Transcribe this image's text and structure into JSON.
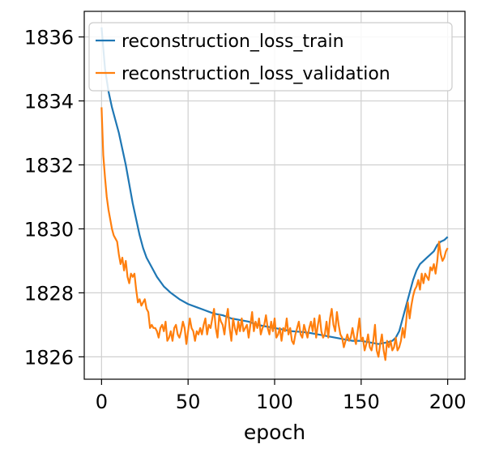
{
  "chart_data": {
    "type": "line",
    "xlabel": "epoch",
    "ylabel": "",
    "xlim": [
      -10,
      210
    ],
    "ylim": [
      1825.3,
      1836.8
    ],
    "xticks": [
      0,
      50,
      100,
      150,
      200
    ],
    "yticks": [
      1826,
      1828,
      1830,
      1832,
      1834,
      1836
    ],
    "grid": true,
    "legend_position": "top-right",
    "colors": {
      "train": "#1f77b4",
      "validation": "#ff7f0e"
    },
    "series": [
      {
        "name": "reconstruction_loss_train",
        "x": [
          0,
          2,
          4,
          6,
          8,
          10,
          12,
          14,
          16,
          18,
          20,
          22,
          24,
          26,
          28,
          30,
          32,
          34,
          36,
          38,
          40,
          45,
          50,
          55,
          60,
          65,
          70,
          75,
          80,
          85,
          90,
          95,
          100,
          105,
          110,
          115,
          120,
          125,
          130,
          135,
          140,
          145,
          150,
          155,
          160,
          165,
          168,
          170,
          172,
          174,
          176,
          178,
          180,
          182,
          184,
          186,
          188,
          190,
          192,
          194,
          196,
          198,
          200
        ],
        "y": [
          1836.3,
          1835.0,
          1834.3,
          1833.8,
          1833.4,
          1833.0,
          1832.5,
          1832.0,
          1831.4,
          1830.8,
          1830.3,
          1829.8,
          1829.4,
          1829.1,
          1828.9,
          1828.7,
          1828.5,
          1828.35,
          1828.2,
          1828.1,
          1828.0,
          1827.8,
          1827.65,
          1827.55,
          1827.45,
          1827.35,
          1827.3,
          1827.2,
          1827.15,
          1827.1,
          1827.0,
          1826.95,
          1826.9,
          1826.85,
          1826.8,
          1826.78,
          1826.75,
          1826.7,
          1826.65,
          1826.6,
          1826.55,
          1826.5,
          1826.5,
          1826.45,
          1826.4,
          1826.45,
          1826.5,
          1826.6,
          1826.8,
          1827.2,
          1827.6,
          1828.0,
          1828.4,
          1828.7,
          1828.9,
          1829.0,
          1829.1,
          1829.2,
          1829.3,
          1829.5,
          1829.6,
          1829.65,
          1829.75
        ]
      },
      {
        "name": "reconstruction_loss_validation",
        "x": [
          0,
          1,
          2,
          3,
          4,
          5,
          6,
          7,
          8,
          9,
          10,
          11,
          12,
          13,
          14,
          15,
          16,
          17,
          18,
          19,
          20,
          21,
          22,
          23,
          24,
          25,
          26,
          27,
          28,
          29,
          30,
          31,
          32,
          33,
          34,
          35,
          36,
          37,
          38,
          39,
          40,
          41,
          42,
          43,
          44,
          45,
          46,
          47,
          48,
          49,
          50,
          51,
          52,
          53,
          54,
          55,
          56,
          57,
          58,
          59,
          60,
          61,
          62,
          63,
          64,
          65,
          66,
          67,
          68,
          69,
          70,
          71,
          72,
          73,
          74,
          75,
          76,
          77,
          78,
          79,
          80,
          81,
          82,
          83,
          84,
          85,
          86,
          87,
          88,
          89,
          90,
          91,
          92,
          93,
          94,
          95,
          96,
          97,
          98,
          99,
          100,
          101,
          102,
          103,
          104,
          105,
          106,
          107,
          108,
          109,
          110,
          111,
          112,
          113,
          114,
          115,
          116,
          117,
          118,
          119,
          120,
          121,
          122,
          123,
          124,
          125,
          126,
          127,
          128,
          129,
          130,
          131,
          132,
          133,
          134,
          135,
          136,
          137,
          138,
          139,
          140,
          141,
          142,
          143,
          144,
          145,
          146,
          147,
          148,
          149,
          150,
          151,
          152,
          153,
          154,
          155,
          156,
          157,
          158,
          159,
          160,
          161,
          162,
          163,
          164,
          165,
          166,
          167,
          168,
          169,
          170,
          171,
          172,
          173,
          174,
          175,
          176,
          177,
          178,
          179,
          180,
          181,
          182,
          183,
          184,
          185,
          186,
          187,
          188,
          189,
          190,
          191,
          192,
          193,
          194,
          195,
          196,
          197,
          198,
          199,
          200
        ],
        "y": [
          1833.8,
          1832.3,
          1831.6,
          1831.0,
          1830.6,
          1830.3,
          1830.0,
          1829.8,
          1829.7,
          1829.6,
          1829.2,
          1828.9,
          1829.1,
          1828.7,
          1829.0,
          1828.5,
          1828.3,
          1828.6,
          1828.5,
          1828.6,
          1828.1,
          1827.7,
          1827.8,
          1827.6,
          1827.7,
          1827.8,
          1827.5,
          1827.4,
          1826.9,
          1827.0,
          1826.9,
          1826.9,
          1826.8,
          1826.6,
          1826.9,
          1827.0,
          1826.8,
          1827.1,
          1826.5,
          1826.6,
          1826.8,
          1826.5,
          1826.9,
          1827.0,
          1826.7,
          1826.6,
          1826.8,
          1827.1,
          1826.9,
          1826.4,
          1826.8,
          1827.2,
          1826.9,
          1826.8,
          1826.5,
          1826.8,
          1826.7,
          1826.9,
          1826.7,
          1827.0,
          1827.2,
          1826.7,
          1827.0,
          1826.9,
          1827.2,
          1827.5,
          1826.9,
          1826.6,
          1827.3,
          1827.1,
          1827.0,
          1826.7,
          1827.2,
          1827.5,
          1826.9,
          1826.5,
          1827.2,
          1826.9,
          1826.7,
          1827.1,
          1826.8,
          1827.2,
          1826.8,
          1826.9,
          1827.0,
          1826.6,
          1827.0,
          1827.4,
          1826.8,
          1827.1,
          1826.9,
          1827.2,
          1826.7,
          1826.9,
          1827.0,
          1827.3,
          1826.9,
          1826.7,
          1827.1,
          1826.8,
          1827.2,
          1826.6,
          1826.7,
          1826.9,
          1826.5,
          1826.9,
          1826.8,
          1827.2,
          1826.7,
          1826.9,
          1826.5,
          1826.4,
          1826.7,
          1826.9,
          1827.1,
          1826.7,
          1826.6,
          1827.0,
          1826.8,
          1826.6,
          1826.9,
          1827.1,
          1826.8,
          1827.2,
          1826.6,
          1827.0,
          1827.3,
          1826.8,
          1826.6,
          1826.7,
          1827.1,
          1826.6,
          1827.2,
          1827.5,
          1827.0,
          1826.8,
          1827.4,
          1827.0,
          1826.7,
          1826.6,
          1826.3,
          1826.5,
          1826.7,
          1826.5,
          1826.6,
          1826.9,
          1826.6,
          1826.4,
          1826.8,
          1827.2,
          1826.5,
          1826.6,
          1826.2,
          1826.4,
          1826.7,
          1826.3,
          1826.2,
          1826.5,
          1827.0,
          1826.2,
          1826.0,
          1826.4,
          1826.7,
          1826.2,
          1825.9,
          1826.5,
          1826.3,
          1826.5,
          1826.2,
          1826.3,
          1826.6,
          1826.2,
          1826.3,
          1826.5,
          1826.9,
          1826.6,
          1827.1,
          1827.7,
          1827.2,
          1827.6,
          1827.9,
          1828.1,
          1828.2,
          1828.4,
          1828.1,
          1828.6,
          1828.3,
          1828.6,
          1828.5,
          1828.4,
          1828.8,
          1828.7,
          1828.9,
          1828.6,
          1829.0,
          1829.6,
          1829.2,
          1829.0,
          1829.1,
          1829.3,
          1829.4
        ]
      }
    ]
  }
}
